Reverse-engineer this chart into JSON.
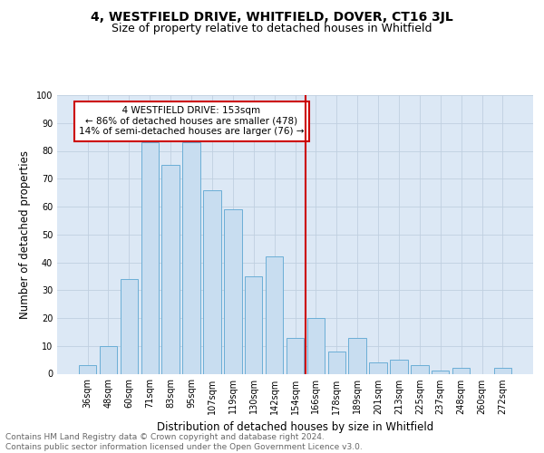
{
  "title": "4, WESTFIELD DRIVE, WHITFIELD, DOVER, CT16 3JL",
  "subtitle": "Size of property relative to detached houses in Whitfield",
  "xlabel": "Distribution of detached houses by size in Whitfield",
  "ylabel": "Number of detached properties",
  "footer_line1": "Contains HM Land Registry data © Crown copyright and database right 2024.",
  "footer_line2": "Contains public sector information licensed under the Open Government Licence v3.0.",
  "categories": [
    "36sqm",
    "48sqm",
    "60sqm",
    "71sqm",
    "83sqm",
    "95sqm",
    "107sqm",
    "119sqm",
    "130sqm",
    "142sqm",
    "154sqm",
    "166sqm",
    "178sqm",
    "189sqm",
    "201sqm",
    "213sqm",
    "225sqm",
    "237sqm",
    "248sqm",
    "260sqm",
    "272sqm"
  ],
  "values": [
    3,
    10,
    34,
    83,
    75,
    83,
    66,
    59,
    35,
    42,
    13,
    20,
    8,
    13,
    4,
    5,
    3,
    1,
    2,
    0,
    2
  ],
  "bar_color": "#c8ddf0",
  "bar_edge_color": "#6baed6",
  "vline_x": 10.5,
  "vline_color": "#cc0000",
  "annotation_box_text": "  4 WESTFIELD DRIVE: 153sqm  \n← 86% of detached houses are smaller (478)\n14% of semi-detached houses are larger (76) →",
  "annotation_box_color": "#cc0000",
  "annotation_box_facecolor": "white",
  "ylim": [
    0,
    100
  ],
  "yticks": [
    0,
    10,
    20,
    30,
    40,
    50,
    60,
    70,
    80,
    90,
    100
  ],
  "grid_color": "#c0cfe0",
  "background_color": "#dce8f5",
  "title_fontsize": 10,
  "subtitle_fontsize": 9,
  "axis_label_fontsize": 8.5,
  "tick_fontsize": 7,
  "footer_fontsize": 6.5,
  "annot_fontsize": 7.5
}
